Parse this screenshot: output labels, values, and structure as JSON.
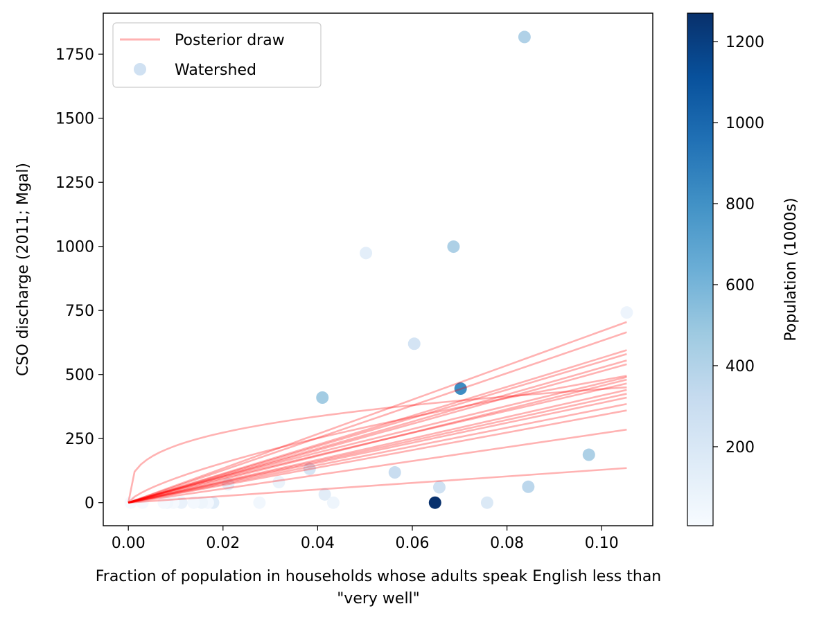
{
  "chart_data": {
    "type": "scatter",
    "title": "",
    "xlabel_lines": [
      "Fraction of population in households whose adults speak English less than",
      "\"very well\""
    ],
    "ylabel": "CSO discharge (2011; Mgal)",
    "xlim": [
      -0.0053,
      0.1108
    ],
    "ylim": [
      -90,
      1910
    ],
    "x_ticks": [
      0.0,
      0.02,
      0.04,
      0.06,
      0.08,
      0.1
    ],
    "x_tick_labels": [
      "0.00",
      "0.02",
      "0.04",
      "0.06",
      "0.08",
      "0.10"
    ],
    "y_ticks": [
      0,
      250,
      500,
      750,
      1000,
      1250,
      1500,
      1750
    ],
    "y_tick_labels": [
      "0",
      "250",
      "500",
      "750",
      "1000",
      "1250",
      "1500",
      "1750"
    ],
    "grid": false,
    "legend": {
      "placement": "top-left",
      "entries": [
        {
          "label": "Posterior draw",
          "kind": "line",
          "color": "#ff0000",
          "alpha": 0.3
        },
        {
          "label": "Watershed",
          "kind": "marker",
          "color": "#d0e1f2"
        }
      ]
    },
    "colorbar": {
      "label": "Population (1000s)",
      "colormap": "Blues",
      "range": [
        5,
        1270
      ],
      "ticks": [
        200,
        400,
        600,
        800,
        1000,
        1200
      ],
      "tick_labels": [
        "200",
        "400",
        "600",
        "800",
        "1000",
        "1200"
      ]
    },
    "posterior_draws": {
      "color": "#ff0000",
      "alpha": 0.3,
      "x_max": 0.1053,
      "draws": [
        {
          "end": 705,
          "exp": 1.0
        },
        {
          "end": 665,
          "exp": 1.0
        },
        {
          "end": 595,
          "exp": 1.0
        },
        {
          "end": 580,
          "exp": 1.0
        },
        {
          "end": 555,
          "exp": 1.0
        },
        {
          "end": 540,
          "exp": 1.0
        },
        {
          "end": 495,
          "exp": 0.7
        },
        {
          "end": 490,
          "exp": 0.95
        },
        {
          "end": 480,
          "exp": 1.0
        },
        {
          "end": 465,
          "exp": 0.95
        },
        {
          "end": 440,
          "exp": 1.0
        },
        {
          "end": 425,
          "exp": 1.0
        },
        {
          "end": 410,
          "exp": 1.0
        },
        {
          "end": 385,
          "exp": 1.0
        },
        {
          "end": 360,
          "exp": 1.0
        },
        {
          "end": 285,
          "exp": 1.0
        },
        {
          "end": 450,
          "exp": 0.3
        },
        {
          "end": 135,
          "exp": 1.0
        }
      ]
    },
    "points": [
      {
        "x": 0.0837,
        "y": 1817,
        "pop": 410
      },
      {
        "x": 0.0687,
        "y": 999,
        "pop": 420
      },
      {
        "x": 0.0502,
        "y": 974,
        "pop": 130
      },
      {
        "x": 0.1053,
        "y": 742,
        "pop": 70
      },
      {
        "x": 0.0604,
        "y": 620,
        "pop": 230
      },
      {
        "x": 0.0702,
        "y": 445,
        "pop": 820
      },
      {
        "x": 0.041,
        "y": 410,
        "pop": 460
      },
      {
        "x": 0.0973,
        "y": 187,
        "pop": 420
      },
      {
        "x": 0.0383,
        "y": 132,
        "pop": 220
      },
      {
        "x": 0.0563,
        "y": 118,
        "pop": 300
      },
      {
        "x": 0.0211,
        "y": 72,
        "pop": 120
      },
      {
        "x": 0.0318,
        "y": 80,
        "pop": 80
      },
      {
        "x": 0.0845,
        "y": 62,
        "pop": 360
      },
      {
        "x": 0.0657,
        "y": 60,
        "pop": 260
      },
      {
        "x": 0.0415,
        "y": 32,
        "pop": 140
      },
      {
        "x": 0.0648,
        "y": 0,
        "pop": 1265
      },
      {
        "x": 0.0758,
        "y": 0,
        "pop": 180
      },
      {
        "x": 0.0433,
        "y": 0,
        "pop": 60
      },
      {
        "x": 0.0277,
        "y": 0,
        "pop": 40
      },
      {
        "x": 0.0179,
        "y": 0,
        "pop": 150
      },
      {
        "x": 0.0168,
        "y": 0,
        "pop": 30
      },
      {
        "x": 0.0155,
        "y": 0,
        "pop": 60
      },
      {
        "x": 0.0138,
        "y": 0,
        "pop": 30
      },
      {
        "x": 0.0112,
        "y": 0,
        "pop": 90
      },
      {
        "x": 0.0095,
        "y": 0,
        "pop": 20
      },
      {
        "x": 0.0082,
        "y": 0,
        "pop": 40
      },
      {
        "x": 0.0075,
        "y": 0,
        "pop": 20
      },
      {
        "x": 0.003,
        "y": 0,
        "pop": 10
      },
      {
        "x": 0.0005,
        "y": 0,
        "pop": 10
      }
    ]
  }
}
